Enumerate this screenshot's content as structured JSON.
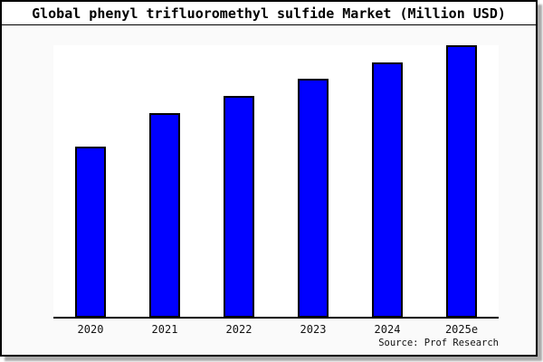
{
  "title": "Global phenyl trifluoromethyl sulfide Market (Million USD)",
  "source": "Source: Prof Research",
  "colors": {
    "bar_fill": "#0000ff",
    "bar_border": "#000000",
    "card_background": "#fafafa",
    "plot_background": "#ffffff",
    "title_band_background": "#ffffff",
    "axis": "#000000",
    "shadow": "#aaaaaa"
  },
  "chart_data": {
    "type": "bar",
    "title": "Global phenyl trifluoromethyl sulfide Market (Million USD)",
    "categories": [
      "2020",
      "2021",
      "2022",
      "2023",
      "2024",
      "2025e"
    ],
    "values": [
      62.8,
      75.1,
      81.4,
      87.7,
      93.7,
      100
    ],
    "value_note": "No y-axis ticks shown in chart; values estimated from bar heights as index with 2025e = 100",
    "xlabel": "",
    "ylabel": "",
    "ylim": [
      0,
      100
    ],
    "grid": false,
    "legend": false,
    "bar_color": "#0000ff",
    "bar_border_color": "#000000",
    "source_label": "Source: Prof Research"
  }
}
